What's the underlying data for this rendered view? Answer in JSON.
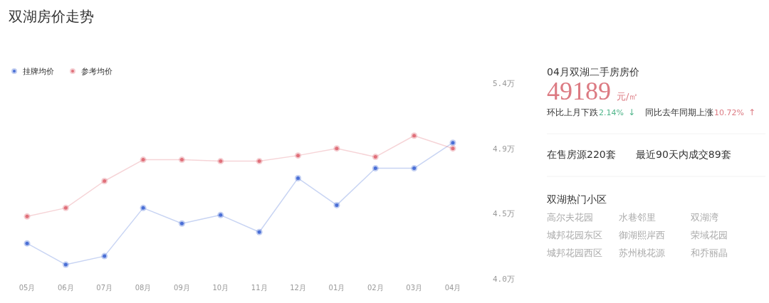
{
  "chart_data": [
    {
      "type": "line",
      "title": "双湖房价走势",
      "categories": [
        "05月",
        "06月",
        "07月",
        "08月",
        "09月",
        "10月",
        "11月",
        "12月",
        "01月",
        "02月",
        "03月",
        "04月"
      ],
      "series": [
        {
          "name": "挂牌均价",
          "color": "#4a6fd6",
          "values": [
            4.25,
            4.1,
            4.16,
            4.5,
            4.39,
            4.45,
            4.33,
            4.71,
            4.52,
            4.78,
            4.78,
            4.96
          ]
        },
        {
          "name": "参考均价",
          "color": "#e0707a",
          "values": [
            4.44,
            4.5,
            4.69,
            4.84,
            4.84,
            4.83,
            4.83,
            4.87,
            4.92,
            4.86,
            5.01,
            4.92
          ]
        }
      ],
      "ylim": [
        4.0,
        5.38
      ],
      "yticks": [
        {
          "value": 4.0,
          "label": "4.0万"
        },
        {
          "value": 4.46,
          "label": "4.5万"
        },
        {
          "value": 4.92,
          "label": "4.9万"
        },
        {
          "value": 5.38,
          "label": "5.4万"
        }
      ],
      "legend": "top left",
      "marker": "circle",
      "grid": false
    },
    {
      "type": "other",
      "title": "04月双湖二手房房价",
      "annotations": [
        "49189",
        "元/㎡",
        "环比上月下跌",
        "2.14%",
        "↓",
        "同比去年同期上涨",
        "10.72%",
        "↑",
        "在售房源220套",
        "最近90天内成交89套",
        "双湖热门小区",
        "高尔夫花园",
        "水巷邻里",
        "双湖湾",
        "城邦花园东区",
        "御湖熙岸西",
        "荣域花园",
        "城邦花园西区",
        "苏州桃花源",
        "和乔丽晶"
      ]
    }
  ]
}
